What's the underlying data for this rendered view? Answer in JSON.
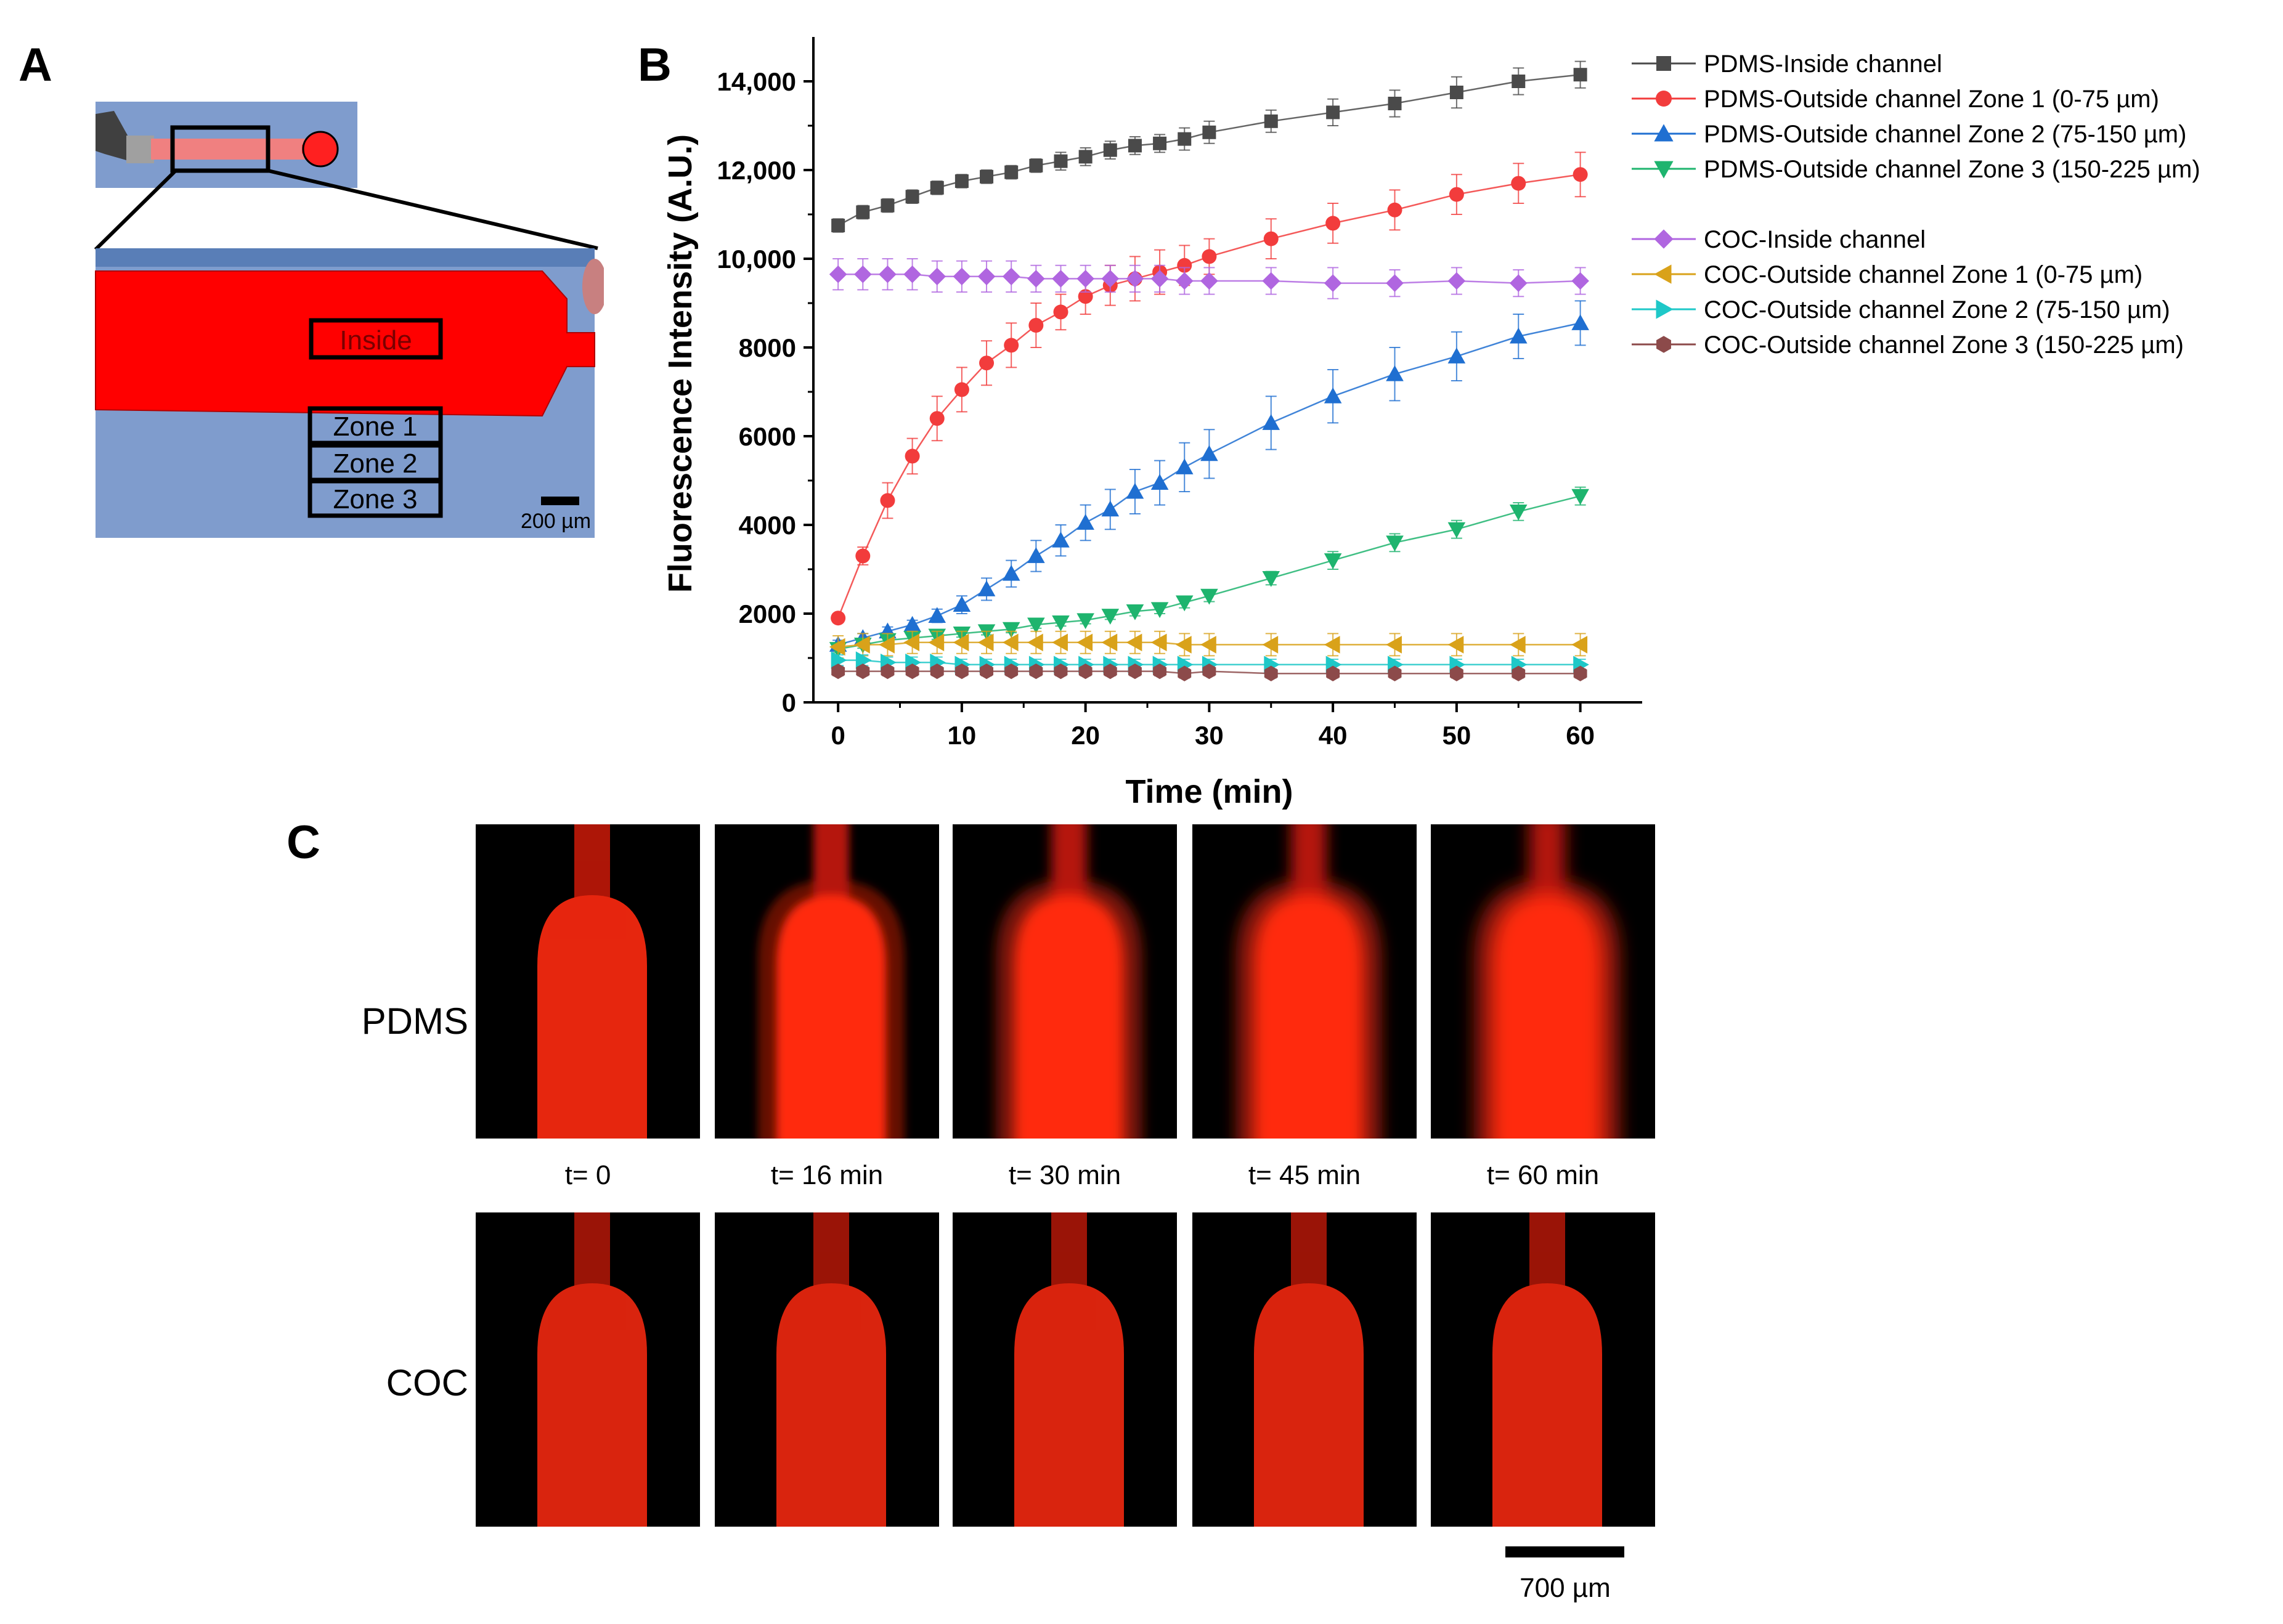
{
  "panels": {
    "a": "A",
    "b": "B",
    "c": "C"
  },
  "panelA": {
    "box_labels": [
      "Inside",
      "Zone 1",
      "Zone 2",
      "Zone 3"
    ],
    "scale_label": "200 µm"
  },
  "chart_data": {
    "type": "line",
    "xlabel": "Time (min)",
    "ylabel": "Fluorescence Intensity (A.U.)",
    "xlim": [
      -2,
      65
    ],
    "ylim": [
      0,
      15000
    ],
    "xticks": [
      0,
      10,
      20,
      30,
      40,
      50,
      60
    ],
    "yticks": [
      0,
      2000,
      4000,
      6000,
      8000,
      10000,
      12000,
      14000
    ],
    "ytick_labels": [
      "0",
      "2000",
      "4000",
      "6000",
      "8000",
      "10,000",
      "12,000",
      "14,000"
    ],
    "x": [
      0,
      2,
      4,
      6,
      8,
      10,
      12,
      14,
      16,
      18,
      20,
      22,
      24,
      26,
      28,
      30,
      35,
      40,
      45,
      50,
      55,
      60
    ],
    "series": [
      {
        "name": "PDMS-Inside channel",
        "color": "#4a4a4a",
        "marker": "square",
        "values": [
          10750,
          11050,
          11200,
          11400,
          11600,
          11750,
          11850,
          11950,
          12100,
          12200,
          12300,
          12450,
          12550,
          12600,
          12700,
          12850,
          13100,
          13300,
          13500,
          13750,
          14000,
          14150
        ],
        "errors": [
          150,
          150,
          150,
          150,
          150,
          150,
          150,
          150,
          150,
          200,
          200,
          200,
          200,
          200,
          250,
          250,
          250,
          300,
          300,
          350,
          300,
          300
        ]
      },
      {
        "name": "PDMS-Outside channel Zone 1 (0-75 µm)",
        "color": "#f23c3c",
        "marker": "circle",
        "values": [
          1900,
          3300,
          4550,
          5550,
          6400,
          7050,
          7650,
          8050,
          8500,
          8800,
          9150,
          9400,
          9550,
          9700,
          9850,
          10050,
          10450,
          10800,
          11100,
          11450,
          11700,
          11900
        ],
        "errors": [
          100,
          200,
          400,
          400,
          500,
          500,
          500,
          500,
          500,
          400,
          400,
          450,
          500,
          500,
          450,
          400,
          450,
          450,
          450,
          450,
          450,
          500
        ]
      },
      {
        "name": "PDMS-Outside channel Zone 2 (75-150 µm)",
        "color": "#1f6fd1",
        "marker": "triangle-up",
        "values": [
          1300,
          1450,
          1600,
          1750,
          1950,
          2200,
          2550,
          2900,
          3300,
          3650,
          4050,
          4350,
          4750,
          4950,
          5300,
          5600,
          6300,
          6900,
          7400,
          7800,
          8250,
          8550
        ],
        "errors": [
          100,
          100,
          100,
          100,
          150,
          200,
          250,
          300,
          350,
          350,
          400,
          450,
          500,
          500,
          550,
          550,
          600,
          600,
          600,
          550,
          500,
          500
        ]
      },
      {
        "name": "PDMS-Outside channel Zone 3 (150-225 µm)",
        "color": "#1eb46e",
        "marker": "triangle-down",
        "values": [
          1200,
          1300,
          1400,
          1450,
          1500,
          1550,
          1600,
          1650,
          1750,
          1800,
          1850,
          1950,
          2050,
          2100,
          2250,
          2400,
          2800,
          3200,
          3600,
          3900,
          4300,
          4650
        ],
        "errors": [
          80,
          80,
          80,
          80,
          80,
          80,
          80,
          80,
          80,
          80,
          80,
          80,
          100,
          100,
          120,
          130,
          150,
          200,
          200,
          200,
          200,
          200
        ]
      },
      {
        "name": "COC-Inside channel",
        "color": "#b066e0",
        "marker": "diamond",
        "values": [
          9650,
          9650,
          9650,
          9650,
          9600,
          9600,
          9600,
          9600,
          9550,
          9550,
          9550,
          9550,
          9550,
          9550,
          9500,
          9500,
          9500,
          9450,
          9450,
          9500,
          9450,
          9500
        ],
        "errors": [
          350,
          350,
          350,
          350,
          350,
          350,
          350,
          350,
          300,
          300,
          300,
          300,
          300,
          300,
          300,
          300,
          300,
          350,
          300,
          300,
          300,
          300
        ]
      },
      {
        "name": "COC-Outside channel Zone 1 (0-75 µm)",
        "color": "#d9a21a",
        "marker": "triangle-left",
        "values": [
          1250,
          1300,
          1300,
          1350,
          1350,
          1350,
          1350,
          1350,
          1350,
          1350,
          1350,
          1350,
          1350,
          1350,
          1300,
          1300,
          1300,
          1300,
          1300,
          1300,
          1300,
          1300
        ],
        "errors": [
          250,
          250,
          250,
          250,
          250,
          250,
          250,
          250,
          250,
          250,
          250,
          250,
          250,
          250,
          250,
          250,
          250,
          250,
          250,
          250,
          250,
          250
        ]
      },
      {
        "name": "COC-Outside channel Zone 2 (75-150 µm)",
        "color": "#1ec8c8",
        "marker": "triangle-right",
        "values": [
          950,
          950,
          900,
          900,
          900,
          850,
          850,
          850,
          850,
          850,
          850,
          850,
          850,
          850,
          850,
          850,
          850,
          850,
          850,
          850,
          850,
          850
        ],
        "errors": [
          120,
          120,
          120,
          120,
          120,
          120,
          120,
          120,
          120,
          120,
          120,
          120,
          120,
          120,
          120,
          120,
          120,
          120,
          120,
          120,
          120,
          120
        ]
      },
      {
        "name": "COC-Outside channel Zone 3 (150-225 µm)",
        "color": "#8c4a4a",
        "marker": "hexagon",
        "values": [
          700,
          700,
          700,
          700,
          700,
          700,
          700,
          700,
          700,
          700,
          700,
          700,
          700,
          700,
          650,
          700,
          650,
          650,
          650,
          650,
          650,
          650
        ],
        "errors": [
          100,
          100,
          100,
          100,
          100,
          100,
          100,
          100,
          100,
          100,
          100,
          100,
          100,
          100,
          100,
          100,
          100,
          100,
          100,
          100,
          100,
          100
        ]
      }
    ],
    "legend_placement": "right"
  },
  "panelC": {
    "rows": [
      "PDMS",
      "COC"
    ],
    "times": [
      "t= 0",
      "t= 16 min",
      "t= 30 min",
      "t= 45 min",
      "t= 60 min"
    ],
    "scale_label": "700 µm",
    "fill_color": "#ff2a10"
  }
}
